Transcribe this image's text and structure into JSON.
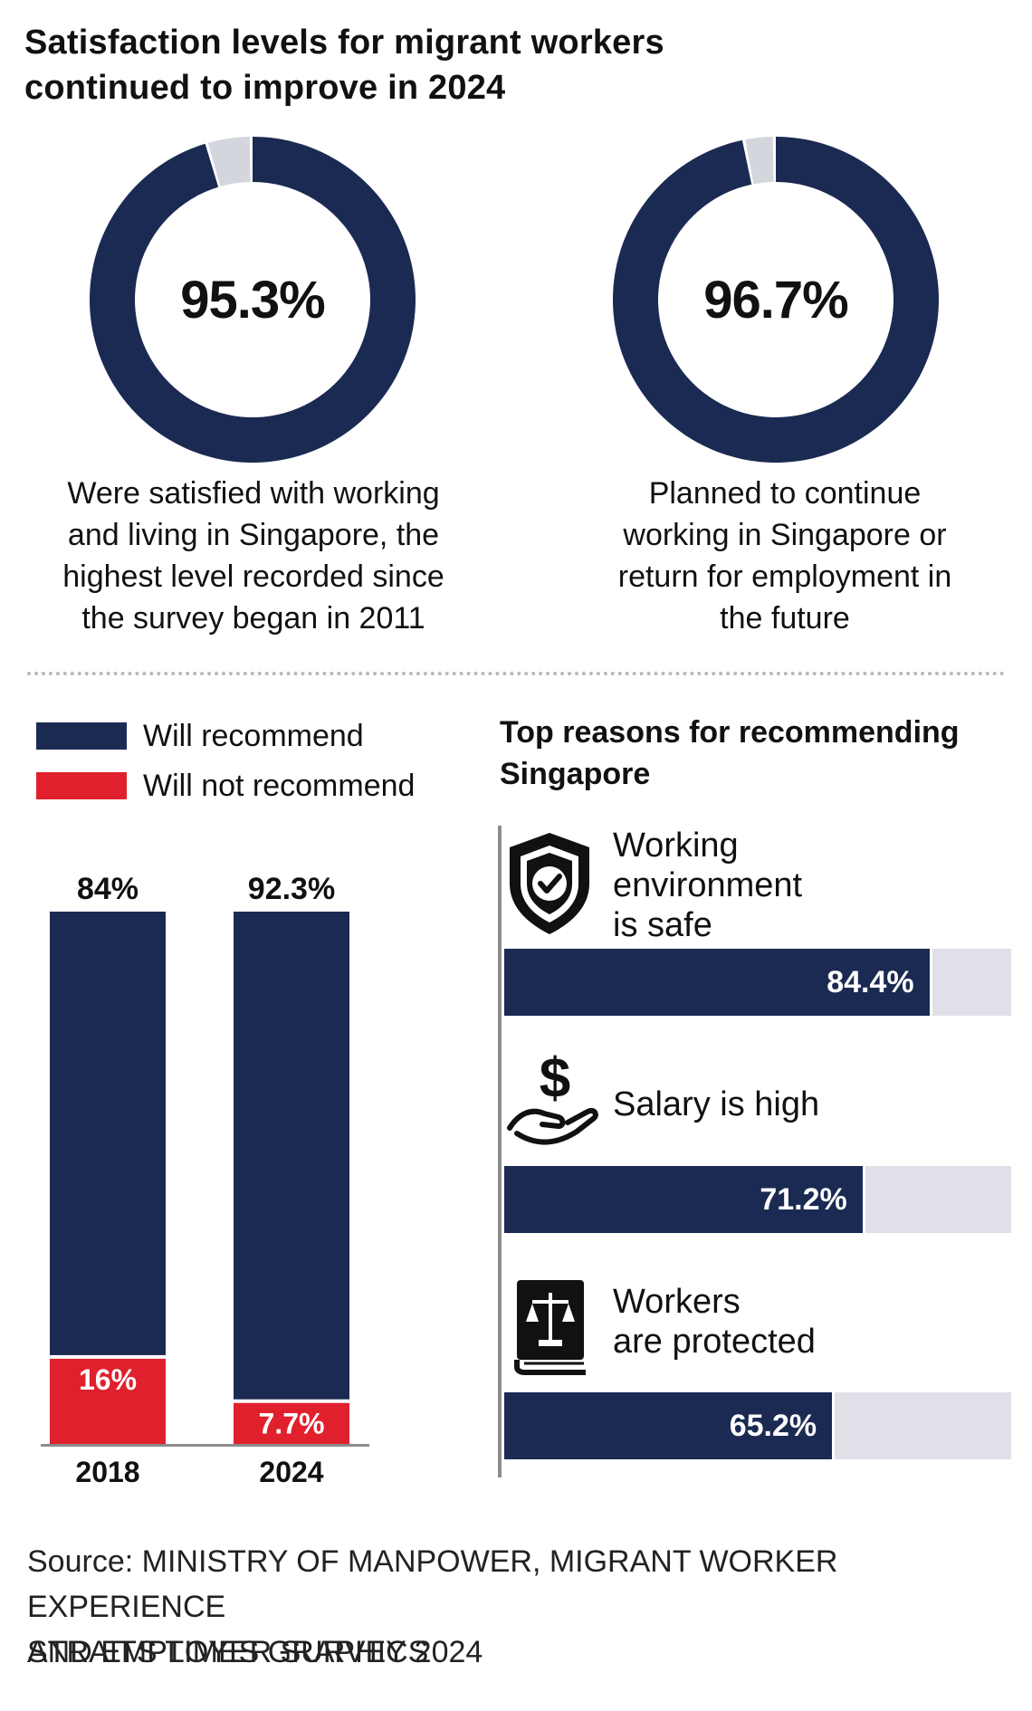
{
  "title": {
    "line1": "Satisfaction levels for migrant workers",
    "line2": "continued to improve in 2024"
  },
  "donuts": [
    {
      "value_label": "95.3%",
      "value": 95.3,
      "caption": [
        "Were satisfied with working",
        "and living in Singapore, the",
        "highest level recorded since",
        "the survey began in 2011"
      ]
    },
    {
      "value_label": "96.7%",
      "value": 96.7,
      "caption": [
        "Planned to continue",
        "working in Singapore or",
        "return for employment in",
        "the future"
      ]
    }
  ],
  "legend": {
    "recommend": "Will recommend",
    "not_recommend": "Will not recommend"
  },
  "reasons": {
    "heading": [
      "Top reasons for recommending",
      "Singapore"
    ],
    "items": [
      {
        "icon": "shield-check-icon",
        "label": [
          "Working",
          "environment",
          "is safe"
        ],
        "value": 84.4,
        "value_label": "84.4%"
      },
      {
        "icon": "hand-dollar-icon",
        "label": [
          "Salary is high"
        ],
        "value": 71.2,
        "value_label": "71.2%"
      },
      {
        "icon": "law-book-icon",
        "label": [
          "Workers",
          "are protected"
        ],
        "value": 65.2,
        "value_label": "65.2%"
      }
    ]
  },
  "source": [
    "Source: MINISTRY OF MANPOWER, MIGRANT WORKER EXPERIENCE",
    "AND EMPLOYER SURVEY 2024"
  ],
  "credit": "STRAITS TIMES GRAPHICS",
  "colors": {
    "navy": "#1b2a52",
    "red": "#e0202c",
    "grey_remainder": "#d4d6de",
    "track": "#e0e0e8"
  },
  "chart_data": [
    {
      "type": "pie",
      "categories": [
        "Were satisfied with working and living in Singapore",
        "Other"
      ],
      "values": [
        95.3,
        4.7
      ]
    },
    {
      "type": "pie",
      "categories": [
        "Planned to continue working in Singapore or return for employment",
        "Other"
      ],
      "values": [
        96.7,
        3.3
      ]
    },
    {
      "type": "bar",
      "stacked": true,
      "categories": [
        "2018",
        "2024"
      ],
      "series": [
        {
          "name": "Will recommend",
          "values": [
            84,
            92.3
          ],
          "labels": [
            "84%",
            "92.3%"
          ]
        },
        {
          "name": "Will not recommend",
          "values": [
            16,
            7.7
          ],
          "labels": [
            "16%",
            "7.7%"
          ]
        }
      ],
      "ylim": [
        0,
        100
      ],
      "legend": "top-left"
    },
    {
      "type": "bar",
      "orientation": "horizontal",
      "title": "Top reasons for recommending Singapore",
      "categories": [
        "Working environment is safe",
        "Salary is high",
        "Workers are protected"
      ],
      "values": [
        84.4,
        71.2,
        65.2
      ],
      "xlim": [
        0,
        100
      ]
    }
  ]
}
